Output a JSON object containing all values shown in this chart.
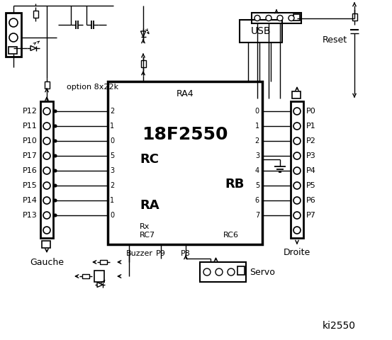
{
  "title": "ki2550",
  "chip_label": "18F2550",
  "chip_sublabel": "RA4",
  "rc_label": "RC",
  "ra_label": "RA",
  "rb_label": "RB",
  "rc_pins": [
    "2",
    "1",
    "0",
    "5",
    "3",
    "2",
    "1",
    "0"
  ],
  "rb_pins": [
    "0",
    "1",
    "2",
    "3",
    "4",
    "5",
    "6",
    "7"
  ],
  "left_pins": [
    "P12",
    "P11",
    "P10",
    "P17",
    "P16",
    "P15",
    "P14",
    "P13"
  ],
  "right_pins": [
    "P0",
    "P1",
    "P2",
    "P3",
    "P4",
    "P5",
    "P6",
    "P7"
  ],
  "option_label": "option 8x22k",
  "usb_label": "USB",
  "reset_label": "Reset",
  "gauche_label": "Gauche",
  "droite_label": "Droite",
  "buzzer_label": "Buzzer",
  "servo_label": "Servo",
  "p8_label": "P8",
  "p9_label": "P9",
  "rx_label": "Rx",
  "rc7_label": "RC7",
  "rc6_label": "RC6",
  "bg_color": "#ffffff",
  "fg_color": "#000000"
}
